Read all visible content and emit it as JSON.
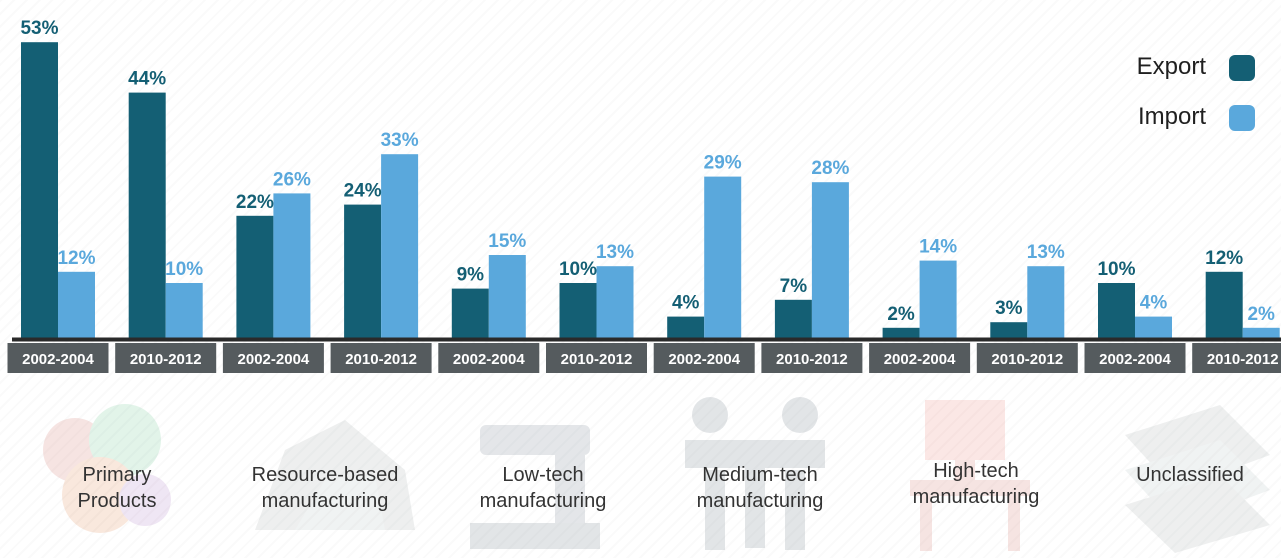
{
  "chart_data": {
    "type": "bar",
    "categories": [
      "2002-2004",
      "2010-2012",
      "2002-2004",
      "2010-2012",
      "2002-2004",
      "2010-2012",
      "2002-2004",
      "2010-2012",
      "2002-2004",
      "2010-2012",
      "2002-2004",
      "2010-2012"
    ],
    "series": [
      {
        "name": "Export",
        "color": "#145f74",
        "values": [
          53,
          44,
          22,
          24,
          9,
          10,
          4,
          7,
          2,
          3,
          10,
          12
        ],
        "labels": [
          "53%",
          "44%",
          "22%",
          "24%",
          "9%",
          "10%",
          "4%",
          "7%",
          "2%",
          "3%",
          "10%",
          "12%"
        ]
      },
      {
        "name": "Import",
        "color": "#5aa8dc",
        "values": [
          12,
          10,
          26,
          33,
          15,
          13,
          29,
          28,
          14,
          13,
          4,
          2
        ],
        "labels": [
          "12%",
          "10%",
          "26%",
          "33%",
          "15%",
          "13%",
          "29%",
          "28%",
          "14%",
          "13%",
          "4%",
          "2%"
        ]
      }
    ],
    "groups": [
      "Primary\nProducts",
      "Resource-based\nmanufacturing",
      "Low-tech\nmanufacturing",
      "Medium-tech\nmanufacturing",
      "High-tech\nmanufacturing",
      "Unclassified"
    ],
    "ylim": [
      0,
      53
    ],
    "grid": false,
    "legend_position": "top-right",
    "title": "",
    "xlabel": "",
    "ylabel": ""
  },
  "legend": {
    "export_label": "Export",
    "import_label": "Import"
  },
  "colors": {
    "export": "#145f74",
    "import": "#5aa8dc",
    "export_label": "#145f74",
    "import_label": "#5aa8dc",
    "period_box": "#555b5e",
    "period_text": "#ffffff",
    "baseline": "#2a2a2a"
  },
  "icons": [
    "vegetables-icon",
    "rocks-icon",
    "sewing-machine-icon",
    "workers-icon",
    "computer-desk-icon",
    "books-icon"
  ]
}
